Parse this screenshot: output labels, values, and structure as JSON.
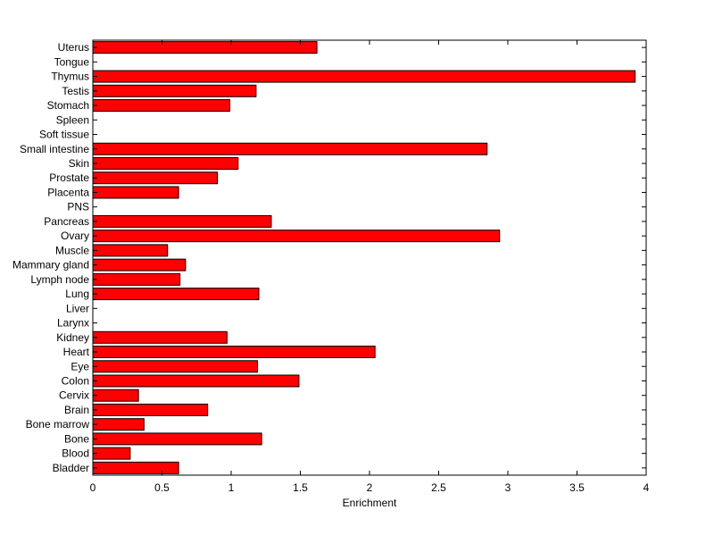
{
  "chart_data": {
    "type": "bar",
    "orientation": "horizontal",
    "title": "",
    "xlabel": "Enrichment",
    "ylabel": "",
    "xlim": [
      0,
      4
    ],
    "xticks": [
      "0",
      "0.5",
      "1",
      "1.5",
      "2",
      "2.5",
      "3",
      "3.5",
      "4"
    ],
    "grid": false,
    "legend": "none",
    "bar_color": "#ff0000",
    "categories": [
      "Uterus",
      "Tongue",
      "Thymus",
      "Testis",
      "Stomach",
      "Spleen",
      "Soft tissue",
      "Small intestine",
      "Skin",
      "Prostate",
      "Placenta",
      "PNS",
      "Pancreas",
      "Ovary",
      "Muscle",
      "Mammary gland",
      "Lymph node",
      "Lung",
      "Liver",
      "Larynx",
      "Kidney",
      "Heart",
      "Eye",
      "Colon",
      "Cervix",
      "Brain",
      "Bone marrow",
      "Bone",
      "Blood",
      "Bladder"
    ],
    "values": [
      1.62,
      0,
      3.92,
      1.18,
      0.99,
      0,
      0,
      2.85,
      1.05,
      0.9,
      0.62,
      0,
      1.29,
      2.94,
      0.54,
      0.67,
      0.63,
      1.2,
      0,
      0,
      0.97,
      2.04,
      1.19,
      1.49,
      0.33,
      0.83,
      0.37,
      1.22,
      0.27,
      0.62
    ]
  }
}
